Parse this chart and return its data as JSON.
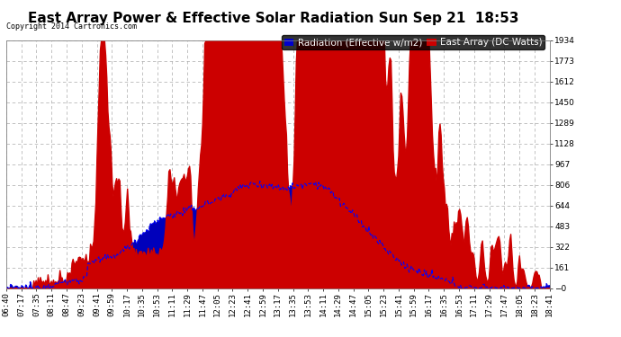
{
  "title": "East Array Power & Effective Solar Radiation Sun Sep 21  18:53",
  "copyright": "Copyright 2014 Cartronics.com",
  "legend_labels": [
    "Radiation (Effective w/m2)",
    "East Array (DC Watts)"
  ],
  "legend_colors": [
    "#0000cc",
    "#cc0000"
  ],
  "plot_bg_color": "#ffffff",
  "fill_color_red": "#cc0000",
  "fill_color_blue": "#0000bb",
  "line_color_blue": "#0000ff",
  "grid_color": "#aaaaaa",
  "title_color": "#000000",
  "ymin": -0.3,
  "ymax": 1933.9,
  "yticks": [
    1933.9,
    1772.7,
    1611.5,
    1450.4,
    1289.2,
    1128.0,
    966.8,
    805.6,
    644.5,
    483.3,
    322.1,
    160.9,
    -0.3
  ],
  "xtick_labels": [
    "06:40",
    "07:17",
    "07:35",
    "08:11",
    "08:47",
    "09:23",
    "09:41",
    "09:59",
    "10:17",
    "10:35",
    "10:53",
    "11:11",
    "11:29",
    "11:47",
    "12:05",
    "12:23",
    "12:41",
    "12:59",
    "13:17",
    "13:35",
    "13:53",
    "14:11",
    "14:29",
    "14:47",
    "15:05",
    "15:23",
    "15:41",
    "15:59",
    "16:17",
    "16:35",
    "16:53",
    "17:11",
    "17:29",
    "17:47",
    "18:05",
    "18:23",
    "18:41"
  ],
  "outer_bg": "#ffffff",
  "title_fontsize": 11,
  "tick_fontsize": 6.5,
  "legend_fontsize": 7.5
}
